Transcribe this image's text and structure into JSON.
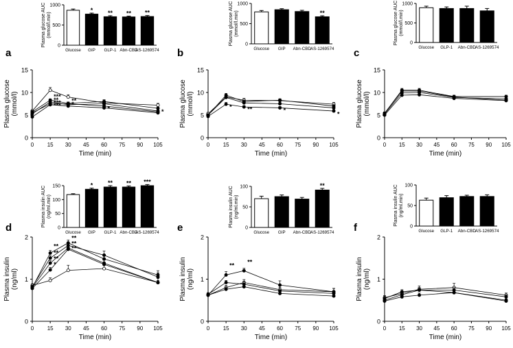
{
  "chart_data": [
    {
      "id": "inset-a",
      "type": "bar",
      "ylabel": "Plasma glucose AUC (mmol/l.min)",
      "categories": [
        "Glucose",
        "GIP",
        "GLP-1",
        "Abn-CBD",
        "AS-1269574"
      ],
      "values": [
        865,
        770,
        705,
        700,
        710
      ],
      "errors": [
        30,
        25,
        25,
        20,
        25
      ],
      "fills": [
        "open",
        "filled",
        "filled",
        "filled",
        "filled"
      ],
      "sig": [
        "",
        "*",
        "**",
        "**",
        "**"
      ],
      "ylim": [
        0,
        1000
      ],
      "yticks": [
        0,
        500,
        1000
      ]
    },
    {
      "id": "inset-b",
      "type": "bar",
      "ylabel": "Plasma glucose AUC (mmol/l.min)",
      "categories": [
        "Glucose",
        "GIP",
        "Abn-CBD",
        "AS-1269574"
      ],
      "values": [
        790,
        845,
        800,
        670
      ],
      "errors": [
        35,
        25,
        30,
        25
      ],
      "fills": [
        "open",
        "filled",
        "filled",
        "filled"
      ],
      "sig": [
        "",
        "",
        "",
        "**"
      ],
      "ylim": [
        0,
        1000
      ],
      "yticks": [
        0,
        500,
        1000
      ]
    },
    {
      "id": "inset-c",
      "type": "bar",
      "ylabel": "Plasma glucose AUC (mmol/l.min)",
      "categories": [
        "Glucose",
        "GLP-1",
        "Abn-CBD",
        "AS-1269574"
      ],
      "values": [
        890,
        870,
        870,
        810
      ],
      "errors": [
        40,
        40,
        60,
        60
      ],
      "fills": [
        "open",
        "filled",
        "filled",
        "filled"
      ],
      "sig": [
        "",
        "",
        "",
        ""
      ],
      "ylim": [
        0,
        1000
      ],
      "yticks": [
        0,
        500,
        1000
      ]
    },
    {
      "id": "inset-d",
      "type": "bar",
      "ylabel": "Plasma insulin AUC (ng/ml.min)",
      "categories": [
        "Glucose",
        "GIP",
        "GLP-1",
        "Abn-CBD",
        "AS-1269574"
      ],
      "values": [
        118,
        137,
        145,
        145,
        150
      ],
      "errors": [
        3,
        4,
        5,
        4,
        4
      ],
      "fills": [
        "open",
        "filled",
        "filled",
        "filled",
        "filled"
      ],
      "sig": [
        "",
        "*",
        "**",
        "**",
        "***"
      ],
      "ylim": [
        0,
        150
      ],
      "yticks": [
        0,
        50,
        100,
        150
      ]
    },
    {
      "id": "inset-e",
      "type": "bar",
      "ylabel": "Plasma insulin AUC (ng/ml.min)",
      "categories": [
        "Glucose",
        "GIP",
        "Abn-CBD",
        "AS-1269574"
      ],
      "values": [
        70,
        75,
        69,
        91
      ],
      "errors": [
        6,
        4,
        4,
        4
      ],
      "fills": [
        "open",
        "filled",
        "filled",
        "filled"
      ],
      "sig": [
        "",
        "",
        "",
        "**"
      ],
      "ylim": [
        0,
        100
      ],
      "yticks": [
        0,
        50,
        100
      ]
    },
    {
      "id": "inset-f",
      "type": "bar",
      "ylabel": "Plasma insulin AUC (ng/ml.min)",
      "categories": [
        "Glucose",
        "GLP-1",
        "Abn-CBD",
        "AS-1269574"
      ],
      "values": [
        63,
        69,
        72,
        72
      ],
      "errors": [
        5,
        5,
        3,
        4
      ],
      "fills": [
        "open",
        "filled",
        "filled",
        "filled"
      ],
      "sig": [
        "",
        "",
        "",
        ""
      ],
      "ylim": [
        0,
        100
      ],
      "yticks": [
        0,
        50,
        100
      ]
    },
    {
      "id": "panel-a",
      "panel_letter": "a",
      "type": "line",
      "ylabel": "Plasma glucose (mmol/l)",
      "xlabel": "Time (min)",
      "x": [
        0,
        15,
        30,
        60,
        105
      ],
      "xticks": [
        0,
        15,
        30,
        45,
        60,
        75,
        90,
        105
      ],
      "ylim": [
        0,
        15
      ],
      "yticks": [
        0,
        5,
        10,
        15
      ],
      "series": [
        {
          "name": "Glucose",
          "marker": "open",
          "values": [
            5.9,
            10.5,
            9.0,
            7.7,
            7.2
          ],
          "errors": [
            0.3,
            0.6,
            0.5,
            0.4,
            0.4
          ]
        },
        {
          "name": "GIP",
          "marker": "filled",
          "values": [
            5.7,
            8.3,
            7.6,
            8.0,
            6.5
          ],
          "errors": [
            0.3,
            0.3,
            0.3,
            0.4,
            0.3
          ]
        },
        {
          "name": "GLP-1",
          "marker": "filled",
          "values": [
            5.3,
            7.9,
            7.3,
            7.5,
            5.9
          ],
          "errors": [
            0.3,
            0.3,
            0.3,
            0.3,
            0.3
          ]
        },
        {
          "name": "Abn-CBD",
          "marker": "filled",
          "values": [
            5.5,
            7.5,
            7.5,
            7.0,
            5.7
          ],
          "errors": [
            0.3,
            0.3,
            0.3,
            0.3,
            0.3
          ]
        },
        {
          "name": "AS-1269574",
          "marker": "filled",
          "values": [
            4.6,
            7.3,
            7.0,
            6.6,
            5.5
          ],
          "errors": [
            0.3,
            0.3,
            0.3,
            0.3,
            0.3
          ]
        }
      ],
      "annotations": [
        {
          "x": 15,
          "y": 8.6,
          "text": "***"
        },
        {
          "x": 15,
          "y": 7.9,
          "text": "**"
        },
        {
          "x": 15,
          "y": 7.3,
          "text": "***"
        },
        {
          "x": 15,
          "y": 6.7,
          "text": "***"
        },
        {
          "x": 30,
          "y": 7.7,
          "text": "**"
        },
        {
          "x": 30,
          "y": 7.0,
          "text": "*"
        },
        {
          "x": 60,
          "y": 6.0,
          "text": "*"
        },
        {
          "x": 105,
          "y": 5.3,
          "text": "*"
        }
      ]
    },
    {
      "id": "panel-b",
      "panel_letter": "b",
      "type": "line",
      "ylabel": "Plasma glucose (mmol/l)",
      "xlabel": "Time (min)",
      "x": [
        0,
        15,
        30,
        60,
        105
      ],
      "xticks": [
        0,
        15,
        30,
        45,
        60,
        75,
        90,
        105
      ],
      "ylim": [
        0,
        15
      ],
      "yticks": [
        0,
        5,
        10,
        15
      ],
      "series": [
        {
          "name": "Glucose",
          "marker": "open",
          "values": [
            5.3,
            9.0,
            8.3,
            8.2,
            7.4
          ],
          "errors": [
            0.3,
            0.5,
            0.4,
            0.4,
            0.4
          ]
        },
        {
          "name": "GIP",
          "marker": "filled",
          "values": [
            5.0,
            9.4,
            8.0,
            8.3,
            7.0
          ],
          "errors": [
            0.3,
            0.4,
            0.3,
            0.3,
            0.3
          ]
        },
        {
          "name": "Abn-CBD",
          "marker": "filled",
          "values": [
            5.0,
            8.9,
            7.7,
            7.5,
            6.6
          ],
          "errors": [
            0.3,
            0.4,
            0.3,
            0.3,
            0.3
          ]
        },
        {
          "name": "AS-1269574",
          "marker": "filled",
          "values": [
            4.7,
            7.4,
            6.8,
            6.6,
            5.9
          ],
          "errors": [
            0.3,
            0.4,
            0.3,
            0.3,
            0.3
          ]
        }
      ],
      "annotations": [
        {
          "x": 15,
          "y": 6.4,
          "text": "*"
        },
        {
          "x": 30,
          "y": 5.8,
          "text": "**"
        },
        {
          "x": 60,
          "y": 5.6,
          "text": "*"
        },
        {
          "x": 105,
          "y": 4.8,
          "text": "*"
        }
      ]
    },
    {
      "id": "panel-c",
      "panel_letter": "c",
      "type": "line",
      "ylabel": "Plasma glucose (mmol/l)",
      "xlabel": "Time (min)",
      "x": [
        0,
        15,
        30,
        60,
        105
      ],
      "xticks": [
        0,
        15,
        30,
        45,
        60,
        75,
        90,
        105
      ],
      "ylim": [
        0,
        15
      ],
      "yticks": [
        0,
        5,
        10,
        15
      ],
      "series": [
        {
          "name": "Glucose",
          "marker": "open",
          "values": [
            5.4,
            10.3,
            10.3,
            9.0,
            8.3
          ],
          "errors": [
            0.3,
            0.4,
            0.4,
            0.3,
            0.3
          ]
        },
        {
          "name": "GLP-1",
          "marker": "filled",
          "values": [
            5.4,
            10.5,
            10.5,
            9.1,
            9.1
          ],
          "errors": [
            0.3,
            0.4,
            0.4,
            0.3,
            0.3
          ]
        },
        {
          "name": "Abn-CBD",
          "marker": "filled",
          "values": [
            5.2,
            9.9,
            10.0,
            8.9,
            8.6
          ],
          "errors": [
            0.3,
            0.4,
            0.4,
            0.3,
            0.3
          ]
        },
        {
          "name": "AS-1269574",
          "marker": "filled",
          "values": [
            5.0,
            9.4,
            9.5,
            8.7,
            8.2
          ],
          "errors": [
            0.3,
            0.4,
            0.4,
            0.3,
            0.3
          ]
        }
      ],
      "annotations": []
    },
    {
      "id": "panel-d",
      "panel_letter": "d",
      "type": "line",
      "ylabel": "Plasma insulin (ng/ml)",
      "xlabel": "Time (min)",
      "x": [
        0,
        15,
        30,
        60,
        105
      ],
      "xticks": [
        0,
        15,
        30,
        45,
        60,
        75,
        90,
        105
      ],
      "ylim": [
        0,
        2
      ],
      "yticks": [
        0,
        1,
        2
      ],
      "series": [
        {
          "name": "Glucose",
          "marker": "open",
          "values": [
            0.85,
            0.97,
            1.21,
            1.25,
            0.92
          ],
          "errors": [
            0.04,
            0.06,
            0.12,
            0.1,
            0.05
          ]
        },
        {
          "name": "GIP",
          "marker": "filled",
          "values": [
            0.8,
            1.62,
            1.86,
            1.48,
            1.1
          ],
          "errors": [
            0.04,
            0.06,
            0.07,
            0.1,
            0.1
          ]
        },
        {
          "name": "GLP-1",
          "marker": "filled",
          "values": [
            0.82,
            1.5,
            1.8,
            1.57,
            1.05
          ],
          "errors": [
            0.04,
            0.06,
            0.07,
            0.1,
            0.1
          ]
        },
        {
          "name": "Abn-CBD",
          "marker": "filled",
          "values": [
            0.8,
            1.38,
            1.74,
            1.38,
            0.92
          ],
          "errors": [
            0.04,
            0.06,
            0.07,
            0.1,
            0.1
          ]
        },
        {
          "name": "AS-1269574",
          "marker": "filled",
          "values": [
            0.78,
            1.22,
            1.71,
            1.35,
            0.92
          ],
          "errors": [
            0.04,
            0.06,
            0.07,
            0.1,
            0.1
          ]
        }
      ],
      "annotations": [
        {
          "x": 15,
          "y": 1.73,
          "text": "**"
        },
        {
          "x": 15,
          "y": 1.58,
          "text": "**"
        },
        {
          "x": 15,
          "y": 1.44,
          "text": "**"
        },
        {
          "x": 15,
          "y": 1.3,
          "text": "*"
        },
        {
          "x": 30,
          "y": 1.93,
          "text": "**"
        },
        {
          "x": 30,
          "y": 1.8,
          "text": "**"
        },
        {
          "x": 30,
          "y": 1.68,
          "text": "**"
        }
      ]
    },
    {
      "id": "panel-e",
      "panel_letter": "e",
      "type": "line",
      "ylabel": "Plasma insulin (ng/ml)",
      "xlabel": "Time (min)",
      "x": [
        0,
        15,
        30,
        60,
        105
      ],
      "xticks": [
        0,
        15,
        30,
        45,
        60,
        75,
        90,
        105
      ],
      "ylim": [
        0,
        2
      ],
      "yticks": [
        0,
        1,
        2
      ],
      "series": [
        {
          "name": "Glucose",
          "marker": "open",
          "values": [
            0.62,
            0.8,
            0.92,
            0.75,
            0.7
          ],
          "errors": [
            0.04,
            0.05,
            0.07,
            0.1,
            0.08
          ]
        },
        {
          "name": "GIP",
          "marker": "filled",
          "values": [
            0.64,
            0.92,
            0.88,
            0.72,
            0.66
          ],
          "errors": [
            0.04,
            0.05,
            0.06,
            0.08,
            0.06
          ]
        },
        {
          "name": "Abn-CBD",
          "marker": "filled",
          "values": [
            0.62,
            0.76,
            0.82,
            0.66,
            0.6
          ],
          "errors": [
            0.04,
            0.05,
            0.05,
            0.06,
            0.05
          ]
        },
        {
          "name": "AS-1269574",
          "marker": "filled",
          "values": [
            0.62,
            1.1,
            1.2,
            0.86,
            0.7
          ],
          "errors": [
            0.04,
            0.08,
            0.06,
            0.1,
            0.08
          ]
        }
      ],
      "annotations": [
        {
          "x": 15,
          "y": 1.28,
          "text": "**"
        },
        {
          "x": 30,
          "y": 1.36,
          "text": "**"
        }
      ]
    },
    {
      "id": "panel-f",
      "panel_letter": "f",
      "type": "line",
      "ylabel": "Plasma insulin (ng/ml)",
      "xlabel": "Time (min)",
      "x": [
        0,
        15,
        30,
        60,
        105
      ],
      "xticks": [
        0,
        15,
        30,
        45,
        60,
        75,
        90,
        105
      ],
      "ylim": [
        0,
        2
      ],
      "yticks": [
        0,
        1,
        2
      ],
      "series": [
        {
          "name": "Glucose",
          "marker": "open",
          "values": [
            0.56,
            0.66,
            0.76,
            0.8,
            0.62
          ],
          "errors": [
            0.05,
            0.05,
            0.08,
            0.1,
            0.05
          ]
        },
        {
          "name": "GLP-1",
          "marker": "filled",
          "values": [
            0.54,
            0.7,
            0.74,
            0.74,
            0.58
          ],
          "errors": [
            0.05,
            0.05,
            0.06,
            0.06,
            0.05
          ]
        },
        {
          "name": "Abn-CBD",
          "marker": "filled",
          "values": [
            0.5,
            0.63,
            0.74,
            0.68,
            0.5
          ],
          "errors": [
            0.05,
            0.05,
            0.06,
            0.06,
            0.05
          ]
        },
        {
          "name": "AS-1269574",
          "marker": "filled",
          "values": [
            0.48,
            0.58,
            0.62,
            0.68,
            0.48
          ],
          "errors": [
            0.05,
            0.05,
            0.05,
            0.06,
            0.05
          ]
        }
      ],
      "annotations": []
    }
  ]
}
